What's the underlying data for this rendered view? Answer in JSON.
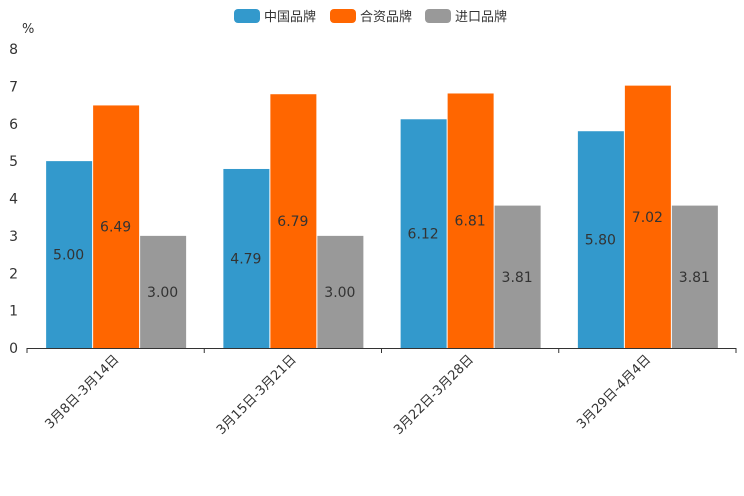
{
  "chart_data": {
    "type": "bar",
    "unit": "%",
    "categories": [
      "3月8日-3月14日",
      "3月15日-3月21日",
      "3月22日-3月28日",
      "3月29日-4月4日"
    ],
    "series": [
      {
        "name": "中国品牌",
        "color": "#3399cc",
        "values": [
          5.0,
          4.79,
          6.12,
          5.8
        ],
        "labels": [
          "5.00",
          "4.79",
          "6.12",
          "5.80"
        ]
      },
      {
        "name": "合资品牌",
        "color": "#ff6600",
        "values": [
          6.49,
          6.79,
          6.81,
          7.02
        ],
        "labels": [
          "6.49",
          "6.79",
          "6.81",
          "7.02"
        ]
      },
      {
        "name": "进口品牌",
        "color": "#999999",
        "values": [
          3.0,
          3.0,
          3.81,
          3.81
        ],
        "labels": [
          "3.00",
          "3.00",
          "3.81",
          "3.81"
        ]
      }
    ],
    "ylim": [
      0,
      8
    ],
    "yticks": [
      "0",
      "1",
      "2",
      "3",
      "4",
      "5",
      "6",
      "7",
      "8"
    ],
    "legend_position": "top-center"
  }
}
